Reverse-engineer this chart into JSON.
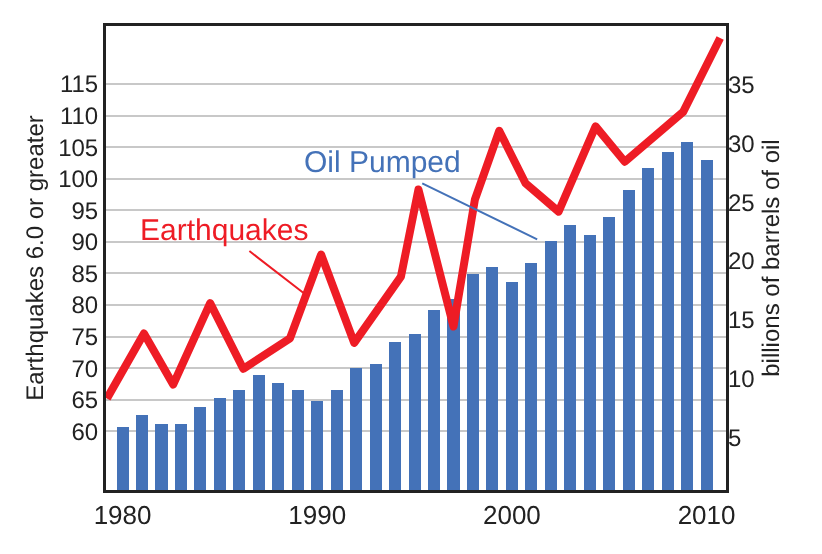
{
  "chart_data": {
    "type": "bar",
    "ylabel": "Earthquakes 6.0 or greater",
    "y2label": "billions of barrels of oil",
    "series": [
      {
        "type": "line",
        "color": "#ee1c25",
        "x": [
          1979.2,
          1981.1,
          1982.6,
          1984.5,
          1986.2,
          1988.6,
          1990.2,
          1991.9,
          1994.3,
          1995.2,
          1997.0,
          1998.1,
          1999.35,
          2000.7,
          2002.4,
          2004.3,
          2005.8,
          2008.8,
          2010.7
        ],
        "values": [
          65.2,
          75.5,
          67.4,
          80.3,
          69.9,
          74.7,
          88.0,
          74.0,
          84.5,
          98.3,
          76.6,
          96.7,
          107.6,
          99.3,
          94.8,
          108.3,
          102.7,
          110.6,
          122.3
        ]
      },
      {
        "axis": "y2",
        "color": "#4472b8",
        "x": [
          1980,
          1981,
          1982,
          1983,
          1984,
          1985,
          1986,
          1987,
          1988,
          1989,
          1990,
          1991,
          1992,
          1993,
          1994,
          1995,
          1996,
          1997,
          1998,
          1999,
          2000,
          2001,
          2002,
          2003,
          2004,
          2005,
          2006,
          2007,
          2008,
          2009,
          2010
        ],
        "values": [
          5.9,
          6.9,
          6.1,
          6.1,
          7.6,
          8.3,
          9.0,
          10.3,
          9.6,
          9.0,
          8.1,
          9.0,
          10.9,
          11.2,
          13.1,
          13.8,
          15.8,
          16.8,
          18.9,
          19.5,
          18.2,
          19.8,
          21.7,
          23.1,
          22.2,
          23.7,
          26.0,
          27.9,
          29.3,
          30.1,
          28.6
        ]
      }
    ],
    "annotations": [
      {
        "text": "Earthquakes",
        "x": 1989.3,
        "y": 81.9
      },
      {
        "text": "Oil Pumped",
        "x": 2001.3,
        "y": 90.4
      }
    ],
    "xlim": [
      1979.15,
      2011
    ],
    "xticks": [
      1980,
      1990,
      2000,
      2010
    ],
    "ylim": [
      50.7,
      124.2
    ],
    "yticks": [
      60,
      65,
      70,
      75,
      80,
      85,
      90,
      95,
      100,
      105,
      110,
      115
    ],
    "y2lim": [
      0.5,
      40
    ],
    "y2ticks": [
      5,
      10,
      15,
      20,
      25,
      30,
      35
    ],
    "grid": "y"
  }
}
